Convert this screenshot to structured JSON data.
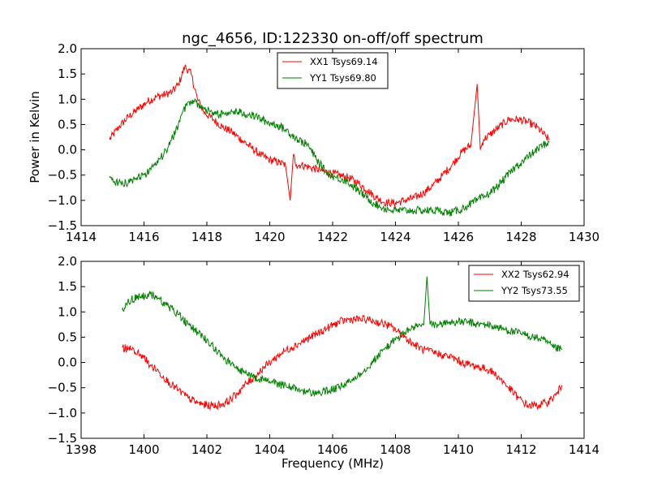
{
  "figure": {
    "title": "ngc_4656, ID:122330 on-off/off spectrum",
    "background": "#ffffff"
  },
  "chart_data": [
    {
      "type": "line",
      "title": "ngc_4656, ID:122330 on-off/off spectrum",
      "xlabel": "",
      "ylabel": "Power in Kelvin",
      "xlim": [
        1414,
        1430
      ],
      "ylim": [
        -1.5,
        2.0
      ],
      "xticks": [
        "1414",
        "1416",
        "1418",
        "1420",
        "1422",
        "1424",
        "1426",
        "1428",
        "1430"
      ],
      "yticks": [
        "−1.5",
        "−1.0",
        "−0.5",
        "0.0",
        "0.5",
        "1.0",
        "1.5",
        "2.0"
      ],
      "grid": false,
      "legend": "upper center",
      "series": [
        {
          "name": "XX1 Tsys69.14",
          "color": "#ff0000",
          "x": [
            1414.9,
            1415.2,
            1415.5,
            1415.8,
            1416.1,
            1416.4,
            1416.7,
            1416.9,
            1417.1,
            1417.3,
            1417.5,
            1417.7,
            1417.9,
            1418.2,
            1418.5,
            1418.8,
            1419.1,
            1419.4,
            1419.7,
            1420.0,
            1420.3,
            1420.5,
            1420.65,
            1420.75,
            1420.85,
            1421.0,
            1421.3,
            1421.6,
            1421.9,
            1422.2,
            1422.5,
            1422.8,
            1423.1,
            1423.4,
            1423.7,
            1424.0,
            1424.3,
            1424.6,
            1424.9,
            1425.2,
            1425.5,
            1425.8,
            1426.1,
            1426.4,
            1426.6,
            1426.7,
            1426.8,
            1427.0,
            1427.3,
            1427.6,
            1427.9,
            1428.2,
            1428.5,
            1428.8,
            1428.9
          ],
          "y": [
            0.2,
            0.45,
            0.65,
            0.8,
            0.95,
            1.05,
            1.1,
            1.15,
            1.3,
            1.65,
            1.5,
            1.0,
            0.75,
            0.6,
            0.45,
            0.35,
            0.2,
            0.05,
            -0.1,
            -0.2,
            -0.25,
            -0.3,
            -1.0,
            -0.1,
            -0.3,
            -0.3,
            -0.35,
            -0.4,
            -0.45,
            -0.5,
            -0.55,
            -0.65,
            -0.8,
            -0.95,
            -1.05,
            -1.05,
            -1.0,
            -0.95,
            -0.85,
            -0.7,
            -0.5,
            -0.3,
            -0.05,
            0.1,
            1.3,
            0.0,
            0.2,
            0.3,
            0.45,
            0.6,
            0.6,
            0.55,
            0.45,
            0.25,
            0.2
          ]
        },
        {
          "name": "YY1 Tsys69.80",
          "color": "#008000",
          "x": [
            1414.9,
            1415.2,
            1415.5,
            1415.8,
            1416.1,
            1416.4,
            1416.7,
            1417.0,
            1417.2,
            1417.4,
            1417.6,
            1417.8,
            1418.1,
            1418.4,
            1418.7,
            1419.0,
            1419.3,
            1419.6,
            1419.9,
            1420.2,
            1420.5,
            1420.7,
            1420.9,
            1421.2,
            1421.5,
            1421.8,
            1422.1,
            1422.4,
            1422.7,
            1423.0,
            1423.3,
            1423.6,
            1423.9,
            1424.2,
            1424.5,
            1424.8,
            1425.1,
            1425.4,
            1425.7,
            1426.0,
            1426.3,
            1426.6,
            1426.9,
            1427.2,
            1427.5,
            1427.8,
            1428.1,
            1428.4,
            1428.7,
            1428.9
          ],
          "y": [
            -0.55,
            -0.65,
            -0.65,
            -0.55,
            -0.45,
            -0.3,
            0.0,
            0.35,
            0.7,
            0.95,
            0.95,
            0.85,
            0.75,
            0.7,
            0.75,
            0.75,
            0.7,
            0.65,
            0.55,
            0.5,
            0.4,
            0.3,
            0.2,
            0.1,
            -0.2,
            -0.45,
            -0.55,
            -0.6,
            -0.75,
            -0.9,
            -1.05,
            -1.15,
            -1.2,
            -1.2,
            -1.2,
            -1.2,
            -1.2,
            -1.2,
            -1.25,
            -1.2,
            -1.1,
            -1.0,
            -0.9,
            -0.75,
            -0.55,
            -0.35,
            -0.2,
            -0.05,
            0.1,
            0.15
          ]
        }
      ]
    },
    {
      "type": "line",
      "title": "",
      "xlabel": "Frequency (MHz)",
      "ylabel": "",
      "xlim": [
        1398,
        1414
      ],
      "ylim": [
        -1.5,
        2.0
      ],
      "xticks": [
        "1398",
        "1400",
        "1402",
        "1404",
        "1406",
        "1408",
        "1410",
        "1412",
        "1414"
      ],
      "yticks": [
        "−1.5",
        "−1.0",
        "−0.5",
        "0.0",
        "0.5",
        "1.0",
        "1.5",
        "2.0"
      ],
      "grid": false,
      "legend": "upper right",
      "series": [
        {
          "name": "XX2 Tsys62.94",
          "color": "#ff0000",
          "x": [
            1399.3,
            1399.6,
            1399.9,
            1400.2,
            1400.5,
            1400.8,
            1401.1,
            1401.4,
            1401.7,
            1402.0,
            1402.3,
            1402.6,
            1402.9,
            1403.2,
            1403.5,
            1403.8,
            1404.1,
            1404.4,
            1404.7,
            1405.0,
            1405.3,
            1405.6,
            1405.9,
            1406.2,
            1406.5,
            1406.8,
            1407.1,
            1407.4,
            1407.7,
            1408.0,
            1408.3,
            1408.6,
            1408.9,
            1409.2,
            1409.5,
            1409.8,
            1410.1,
            1410.4,
            1410.7,
            1411.0,
            1411.3,
            1411.6,
            1411.9,
            1412.2,
            1412.5,
            1412.8,
            1413.1,
            1413.3
          ],
          "y": [
            0.3,
            0.25,
            0.15,
            -0.05,
            -0.2,
            -0.4,
            -0.55,
            -0.7,
            -0.8,
            -0.85,
            -0.85,
            -0.8,
            -0.65,
            -0.45,
            -0.3,
            -0.1,
            0.05,
            0.2,
            0.3,
            0.4,
            0.5,
            0.6,
            0.7,
            0.8,
            0.85,
            0.85,
            0.85,
            0.8,
            0.75,
            0.65,
            0.5,
            0.35,
            0.25,
            0.2,
            0.15,
            0.1,
            0.0,
            -0.05,
            -0.1,
            -0.15,
            -0.3,
            -0.5,
            -0.7,
            -0.85,
            -0.85,
            -0.8,
            -0.65,
            -0.45
          ]
        },
        {
          "name": "YY2 Tsys73.55",
          "color": "#008000",
          "x": [
            1399.3,
            1399.6,
            1399.9,
            1400.2,
            1400.5,
            1400.8,
            1401.1,
            1401.4,
            1401.7,
            1402.0,
            1402.3,
            1402.6,
            1402.9,
            1403.2,
            1403.5,
            1403.8,
            1404.1,
            1404.4,
            1404.7,
            1405.0,
            1405.3,
            1405.6,
            1405.9,
            1406.2,
            1406.5,
            1406.8,
            1407.1,
            1407.4,
            1407.7,
            1408.0,
            1408.3,
            1408.6,
            1408.9,
            1409.0,
            1409.1,
            1409.4,
            1409.7,
            1410.0,
            1410.3,
            1410.6,
            1410.9,
            1411.2,
            1411.5,
            1411.8,
            1412.1,
            1412.4,
            1412.7,
            1413.0,
            1413.3
          ],
          "y": [
            1.05,
            1.25,
            1.3,
            1.35,
            1.25,
            1.1,
            0.95,
            0.75,
            0.6,
            0.45,
            0.25,
            0.05,
            -0.1,
            -0.2,
            -0.3,
            -0.35,
            -0.4,
            -0.45,
            -0.5,
            -0.55,
            -0.6,
            -0.6,
            -0.55,
            -0.5,
            -0.4,
            -0.25,
            -0.1,
            0.1,
            0.3,
            0.45,
            0.6,
            0.7,
            0.75,
            1.7,
            0.75,
            0.75,
            0.8,
            0.8,
            0.8,
            0.75,
            0.75,
            0.7,
            0.65,
            0.6,
            0.55,
            0.5,
            0.45,
            0.3,
            0.25
          ]
        }
      ]
    }
  ]
}
